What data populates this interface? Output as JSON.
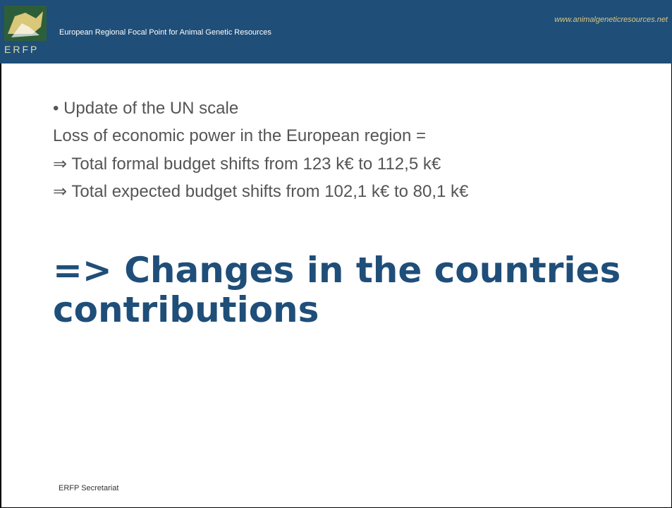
{
  "header": {
    "organization": "European Regional Focal Point for Animal Genetic Resources",
    "website": "www.animalgeneticresources.net",
    "logo_text": "ERFP"
  },
  "body": {
    "bullet": "• Update of the UN scale",
    "lines": [
      "Loss of economic power in the European region =",
      "⇒ Total formal budget shifts from 123 k€ to 112,5 k€",
      "⇒ Total expected budget shifts from 102,1 k€ to 80,1 k€"
    ],
    "heading": "=> Changes in the countries contributions"
  },
  "footer": "ERFP Secretariat"
}
